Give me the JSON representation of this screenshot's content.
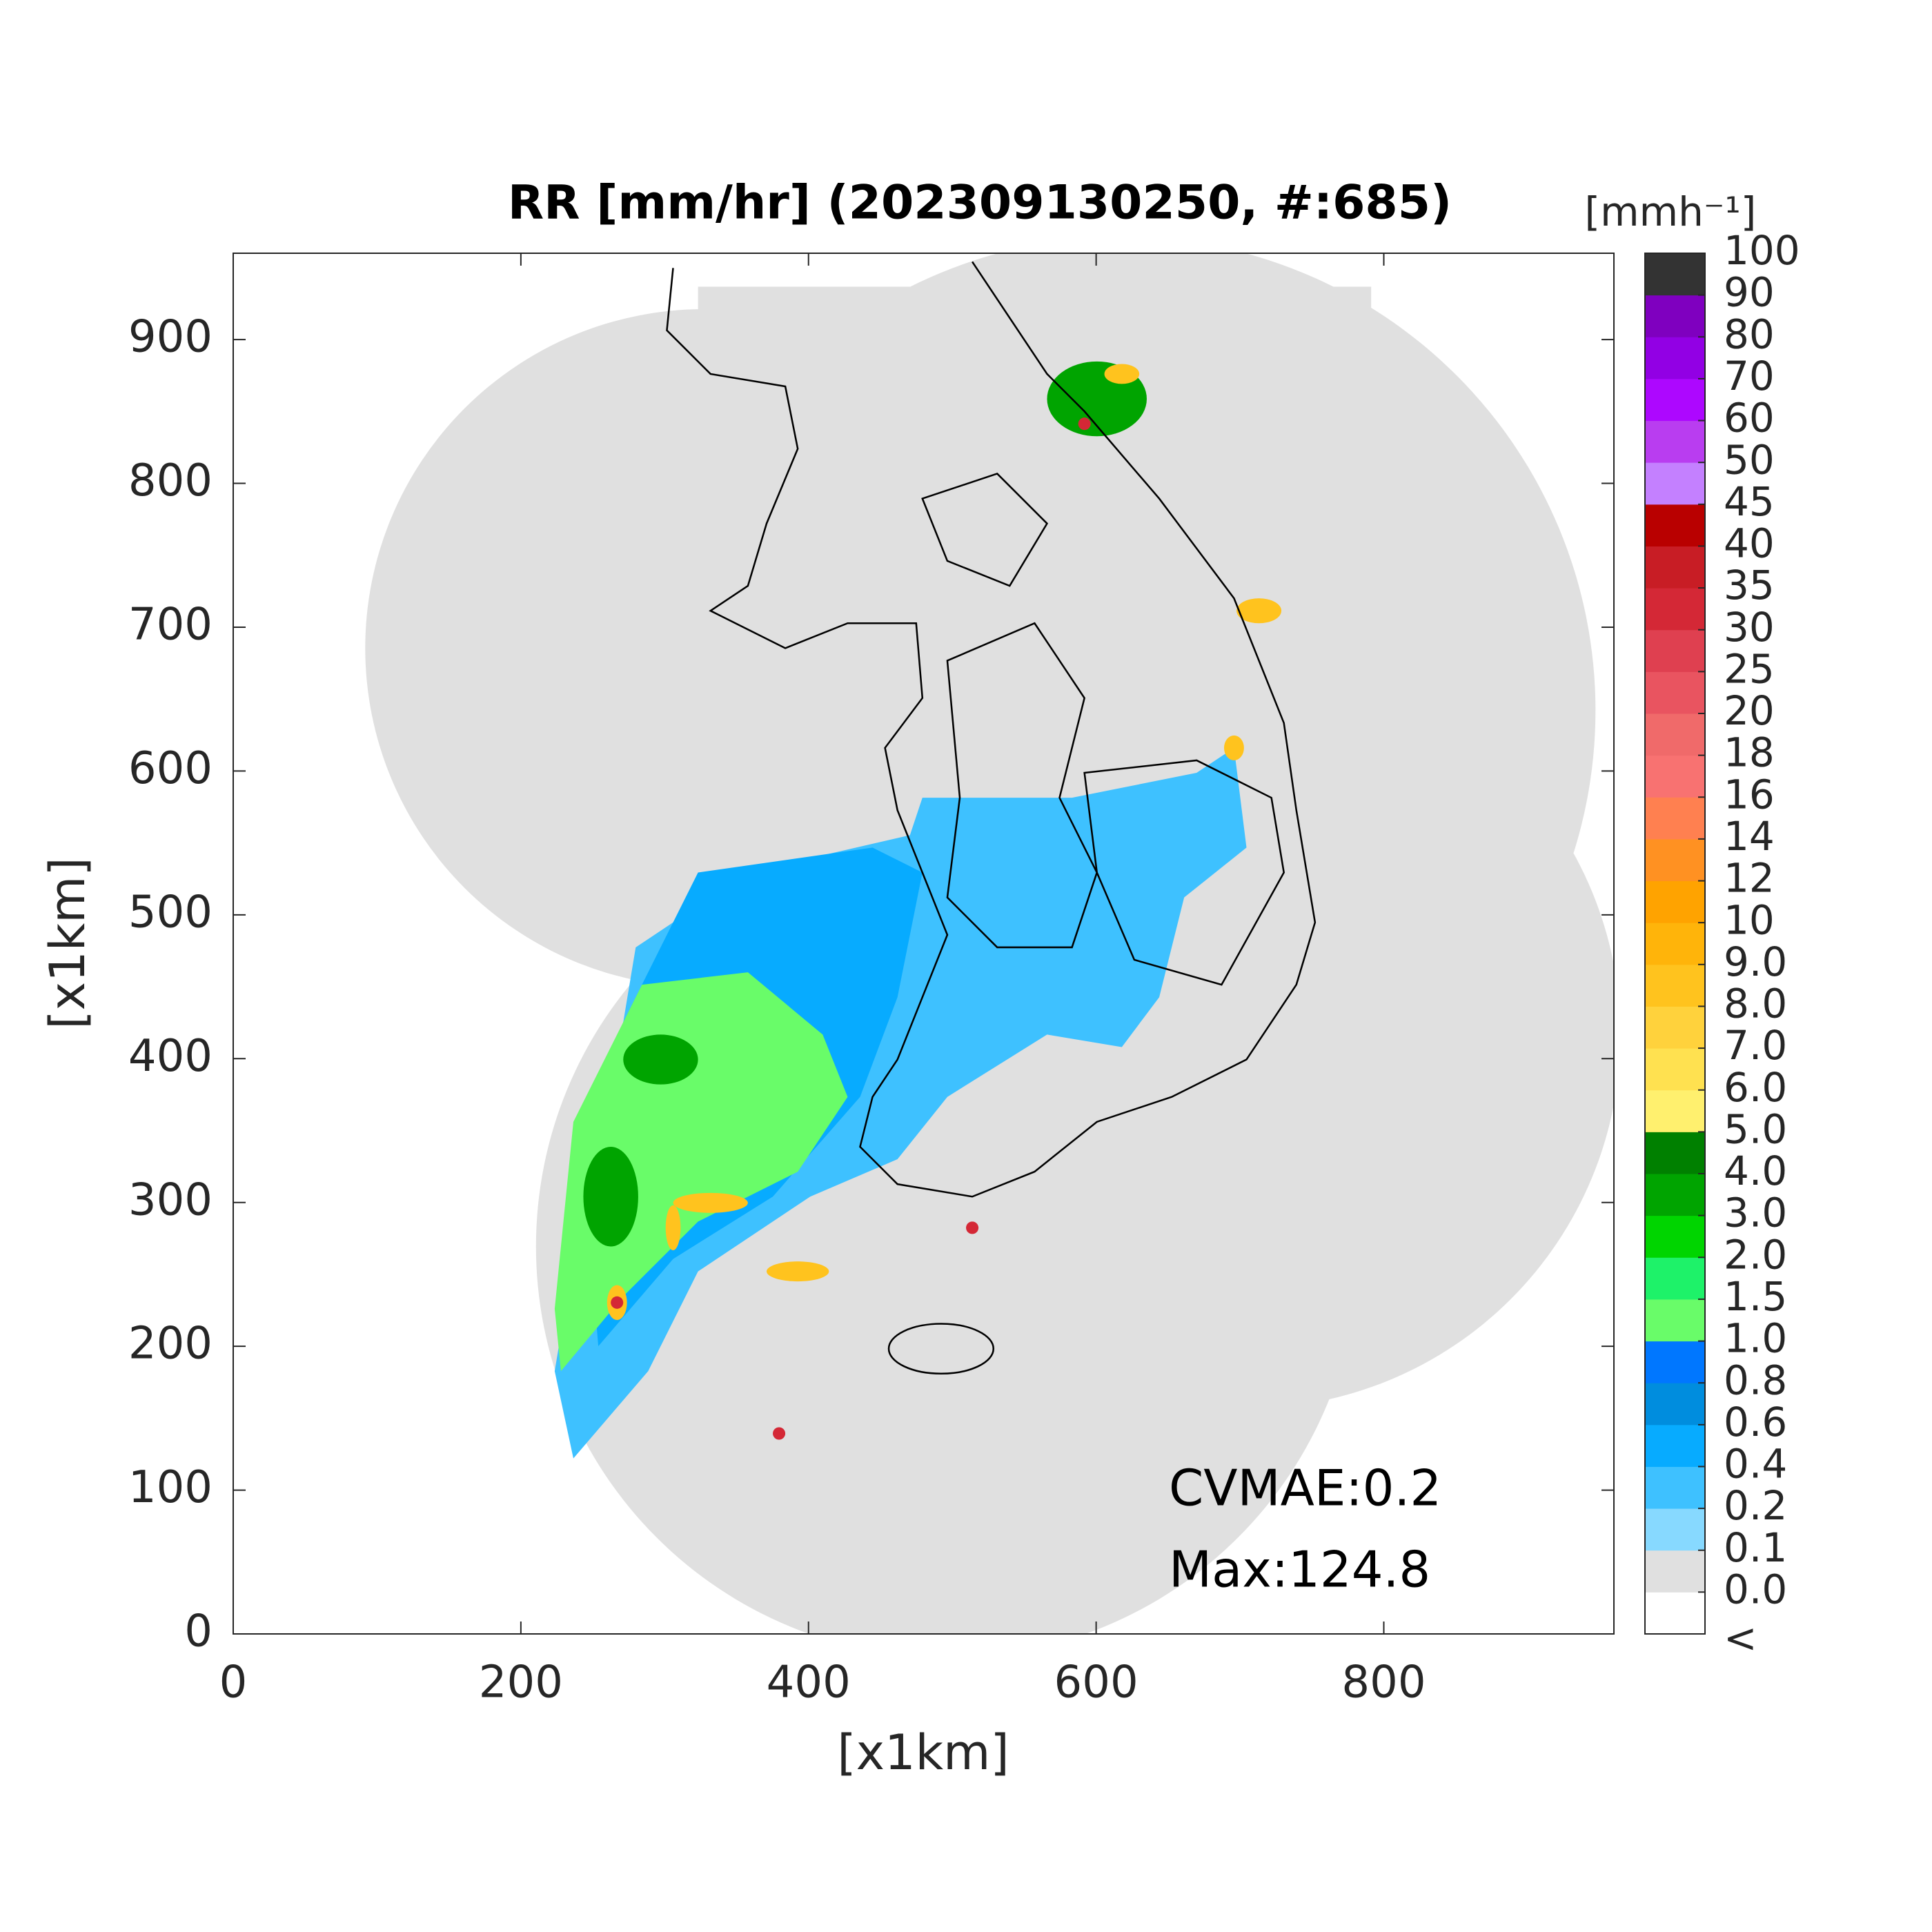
{
  "chart_data": {
    "type": "heatmap",
    "title": "RR [mm/hr] (202309130250, #:685)",
    "xlabel": "[x1km]",
    "ylabel": "[x1km]",
    "xlim": [
      0,
      960
    ],
    "ylim": [
      0,
      960
    ],
    "xticks": [
      0,
      200,
      400,
      600,
      800
    ],
    "yticks": [
      0,
      100,
      200,
      300,
      400,
      500,
      600,
      700,
      800,
      900
    ],
    "annotations": [
      "CVMAE:0.2",
      "Max:124.8"
    ],
    "colorbar": {
      "label": "[mmh⁻¹]",
      "under_label": "<",
      "ticks": [
        {
          "value": 0,
          "label": "0.0"
        },
        0.1,
        0.2,
        0.4,
        0.6,
        0.8,
        {
          "value": 1,
          "label": "1.0"
        },
        1.5,
        {
          "value": 2,
          "label": "2.0"
        },
        {
          "value": 3,
          "label": "3.0"
        },
        {
          "value": 4,
          "label": "4.0"
        },
        {
          "value": 5,
          "label": "5.0"
        },
        {
          "value": 6,
          "label": "6.0"
        },
        {
          "value": 7,
          "label": "7.0"
        },
        {
          "value": 8,
          "label": "8.0"
        },
        {
          "value": 9,
          "label": "9.0"
        },
        10,
        12,
        14,
        16,
        18,
        20,
        25,
        30,
        35,
        40,
        45,
        50,
        60,
        70,
        80,
        90,
        100
      ],
      "colors": [
        "#ffffff",
        "#e0e0e0",
        "#87d9ff",
        "#3ec1ff",
        "#07abff",
        "#008dde",
        "#0077ff",
        "#69fc69",
        "#1ef269",
        "#00d500",
        "#00a400",
        "#008000",
        "#fff06e",
        "#ffe150",
        "#ffd23c",
        "#ffc31e",
        "#ffb40a",
        "#ffa300",
        "#ff9122",
        "#ff8050",
        "#f87271",
        "#f06a6a",
        "#e95460",
        "#df4050",
        "#d42836",
        "#c81d25",
        "#b90000",
        "#c480ff",
        "#b93df0",
        "#ad07ff",
        "#9200e4",
        "#7f00bf",
        "#333333"
      ]
    }
  }
}
